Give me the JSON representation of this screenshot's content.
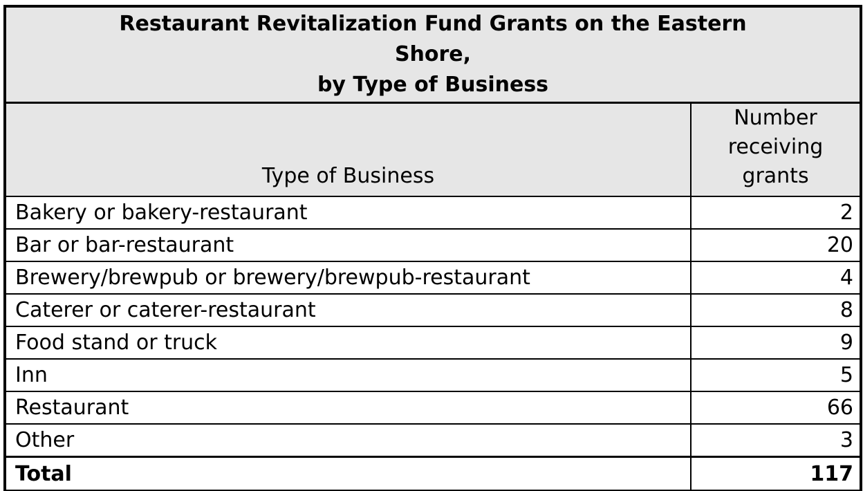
{
  "chart_data": {
    "type": "table",
    "title": "Restaurant Revitalization Fund Grants on the Eastern Shore, by Type of Business",
    "columns": [
      "Type of Business",
      "Number receiving grants"
    ],
    "categories": [
      "Bakery or bakery-restaurant",
      "Bar or bar-restaurant",
      "Brewery/brewpub or brewery/brewpub-restaurant",
      "Caterer or caterer-restaurant",
      "Food stand or truck",
      "Inn",
      "Restaurant",
      "Other"
    ],
    "values": [
      2,
      20,
      4,
      8,
      9,
      5,
      66,
      3
    ],
    "total_label": "Total",
    "total_value": 117
  },
  "table": {
    "title_lines": [
      "Restaurant Revitalization Fund Grants on the Eastern",
      "Shore,",
      "by Type of Business"
    ],
    "header": {
      "type_label": "Type of Business",
      "number_label": "Number receiving grants"
    },
    "rows": [
      {
        "label": "Bakery or bakery-restaurant",
        "value": "2"
      },
      {
        "label": "Bar or bar-restaurant",
        "value": "20"
      },
      {
        "label": "Brewery/brewpub or brewery/brewpub-restaurant",
        "value": "4"
      },
      {
        "label": "Caterer or caterer-restaurant",
        "value": "8"
      },
      {
        "label": "Food stand or truck",
        "value": "9"
      },
      {
        "label": "Inn",
        "value": "5"
      },
      {
        "label": "Restaurant",
        "value": "66"
      },
      {
        "label": "Other",
        "value": "3"
      }
    ],
    "total": {
      "label": "Total",
      "value": "117"
    },
    "colors": {
      "header_bg": "#e6e6e6",
      "row_bg": "#ffffff",
      "border": "#000000",
      "text": "#000000"
    }
  }
}
